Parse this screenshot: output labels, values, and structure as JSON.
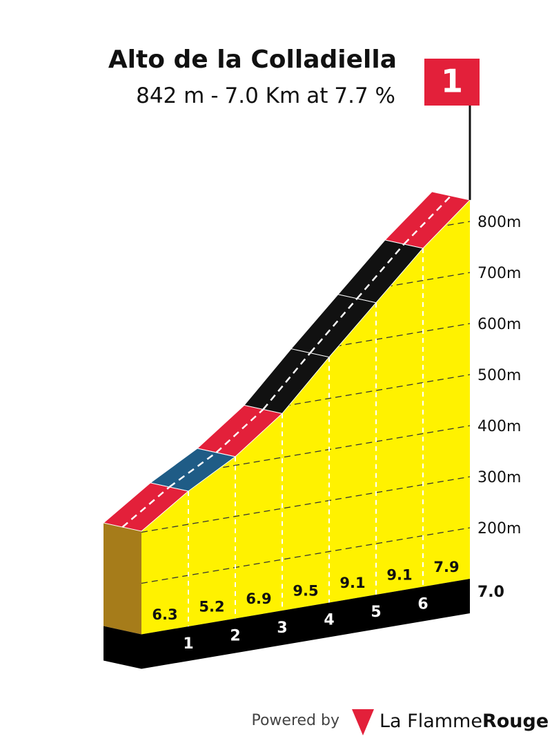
{
  "chart_data": {
    "type": "climb-profile",
    "title": "Alto de la Colladiella",
    "subtitle": [
      {
        "value": 842,
        "label": "842 m"
      },
      "-",
      {
        "value": 7.0,
        "label": "7.0 Km"
      },
      "at",
      {
        "value": 7.7,
        "label": "7.7 %"
      }
    ],
    "xlim": [
      0,
      7
    ],
    "xticks": [
      1,
      2,
      3,
      4,
      5,
      6,
      {
        "value": 7,
        "label": "7.0"
      }
    ],
    "ylim": [
      100,
      850
    ],
    "yticks": [
      {
        "value": 200,
        "label": "200m"
      },
      {
        "value": 300,
        "label": "300m"
      },
      {
        "value": 400,
        "label": "400m"
      },
      {
        "value": 500,
        "label": "500m"
      },
      {
        "value": 600,
        "label": "600m"
      },
      {
        "value": 700,
        "label": "700m"
      },
      {
        "value": 800,
        "label": "800m"
      }
    ],
    "values": [
      6.3,
      5.2,
      6.9,
      9.5,
      9.1,
      9.1,
      7.9
    ],
    "colors": [
      "#e3203a",
      "#1f5c86",
      "#e3203a",
      "#111111",
      "#111111",
      "#111111",
      "#e3203a"
    ],
    "grid": true,
    "flag_label": "1"
  },
  "footer": {
    "powered_by": "Powered by",
    "brand": "La Flamme",
    "brand_bold": "Rouge"
  }
}
